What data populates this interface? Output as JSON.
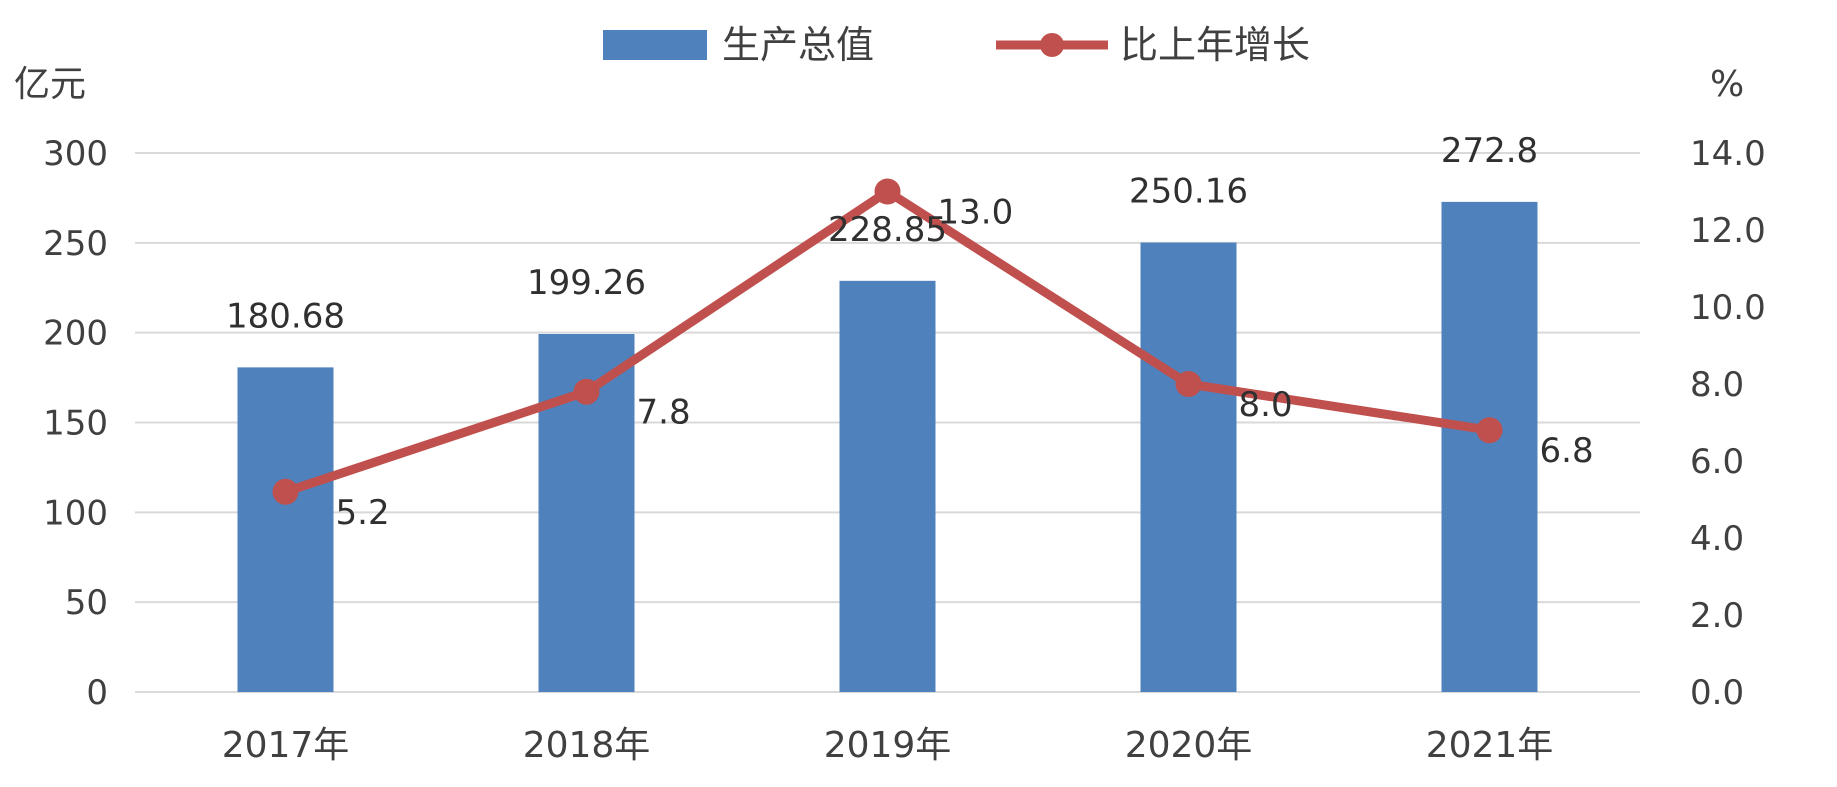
{
  "chart_data": {
    "type": "bar",
    "categories": [
      "2017年",
      "2018年",
      "2019年",
      "2020年",
      "2021年"
    ],
    "series": [
      {
        "name": "生产总值",
        "type": "bar",
        "axis": "left",
        "values": [
          180.68,
          199.26,
          228.85,
          250.16,
          272.8
        ],
        "labels": [
          "180.68",
          "199.26",
          "228.85",
          "250.16",
          "272.8"
        ],
        "color": "#4f81bd"
      },
      {
        "name": "比上年增长",
        "type": "line",
        "axis": "right",
        "values": [
          5.2,
          7.8,
          13.0,
          8.0,
          6.8
        ],
        "labels": [
          "5.2",
          "7.8",
          "13.0",
          "8.0",
          "6.8"
        ],
        "color": "#c0504d"
      }
    ],
    "left_axis": {
      "unit": "亿元",
      "ylim": [
        0,
        300
      ],
      "ticks": [
        "0",
        "50",
        "100",
        "150",
        "200",
        "250",
        "300"
      ]
    },
    "right_axis": {
      "unit": "%",
      "ylim": [
        0,
        14
      ],
      "ticks": [
        "0.0",
        "2.0",
        "4.0",
        "6.0",
        "8.0",
        "10.0",
        "12.0",
        "14.0"
      ]
    },
    "grid": true,
    "legend_position": "top"
  }
}
